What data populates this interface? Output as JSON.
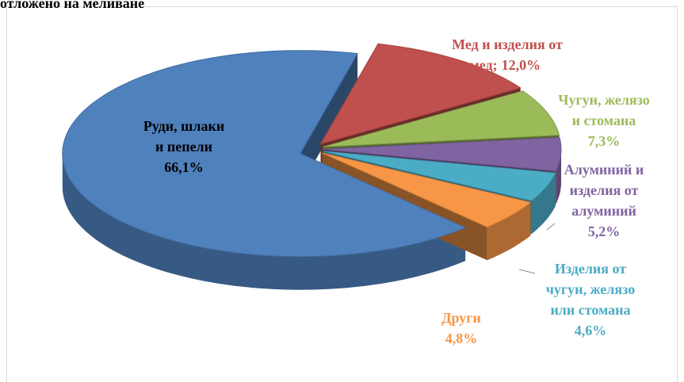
{
  "chart_data": {
    "type": "pie3d",
    "title": "отложено на меливане",
    "categories": [
      "Руди, шлаки\nи пепели",
      "Мед и изделия от\nмед;",
      "Чугун, желязо\nи стомана",
      "Алуминий и\nизделия от\nалуминий",
      "Изделия от\nчугун, желязо\nили стомана",
      "Други"
    ],
    "values": [
      66.1,
      12.0,
      7.3,
      5.2,
      4.6,
      4.8
    ],
    "value_labels": [
      "66,1%",
      "12,0%",
      "7,3%",
      "5,2%",
      "4,6%",
      "4,8%"
    ],
    "colors": [
      "#4f81bd",
      "#c0504d",
      "#9bbb59",
      "#8064a2",
      "#4bacc6",
      "#f79646"
    ]
  }
}
